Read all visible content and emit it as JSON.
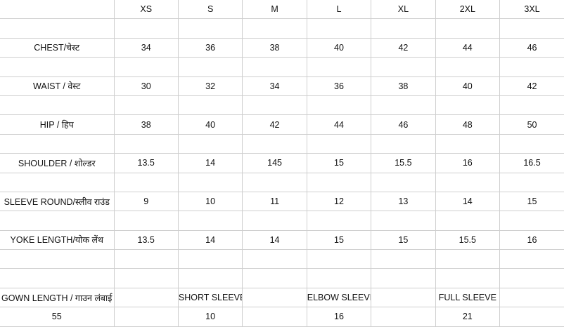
{
  "table": {
    "header": [
      null,
      "XS",
      "S",
      "M",
      "L",
      "XL",
      "2XL",
      "3XL"
    ],
    "rows": [
      null,
      [
        "CHEST/चेस्ट",
        "34",
        "36",
        "38",
        "40",
        "42",
        "44",
        "46"
      ],
      null,
      [
        "WAIST / वेस्ट",
        "30",
        "32",
        "34",
        "36",
        "38",
        "40",
        "42"
      ],
      null,
      [
        "HIP / हिप",
        "38",
        "40",
        "42",
        "44",
        "46",
        "48",
        "50"
      ],
      null,
      [
        "SHOULDER / शोल्डर",
        "13.5",
        "14",
        "145",
        "15",
        "15.5",
        "16",
        "16.5"
      ],
      null,
      [
        "SLEEVE ROUND/स्लीव राउंड",
        "9",
        "10",
        "11",
        "12",
        "13",
        "14",
        "15"
      ],
      null,
      [
        "YOKE LENGTH/योक लेंथ",
        "13.5",
        "14",
        "14",
        "15",
        "15",
        "15.5",
        "16"
      ],
      null,
      null,
      [
        "GOWN LENGTH / गाउन लंबाई",
        null,
        "SHORT SLEEVE",
        null,
        "ELBOW SLEEVE",
        null,
        "FULL SLEEVE",
        null
      ],
      [
        "55",
        null,
        "10",
        null,
        "16",
        null,
        "21",
        null
      ]
    ]
  }
}
